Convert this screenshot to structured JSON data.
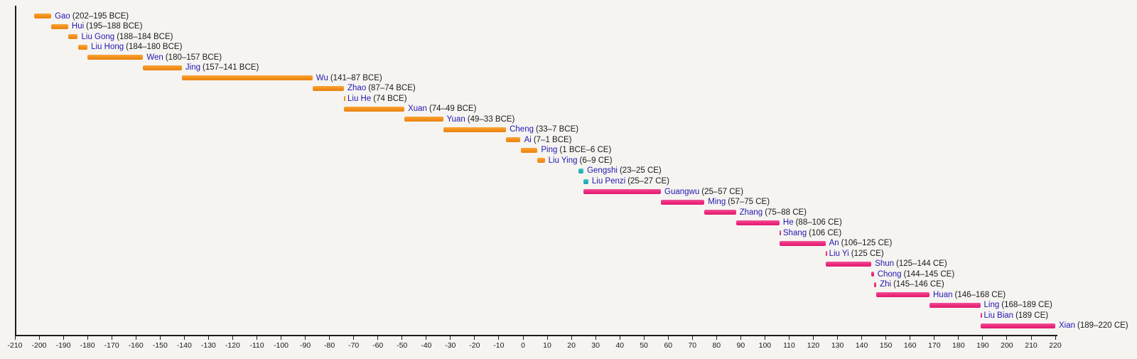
{
  "page": {
    "background": "#f5f4f1"
  },
  "style": {
    "name_color": "#2318b1",
    "date_color": "#1a1a1a",
    "axis_color": "#1c1c1c"
  },
  "chart_data": {
    "type": "bar",
    "variant": "horizontal-timeline-gantt",
    "title": "",
    "xlabel": "",
    "ylabel": "",
    "grid": false,
    "legend": false,
    "x_axis": {
      "min": -210,
      "max": 220,
      "tick_step": 10,
      "ticks": [
        "-210",
        "-200",
        "-190",
        "-180",
        "-170",
        "-160",
        "-150",
        "-140",
        "-130",
        "-120",
        "-110",
        "-100",
        "-90",
        "-80",
        "-70",
        "-60",
        "-50",
        "-40",
        "-30",
        "-20",
        "-10",
        "0",
        "10",
        "20",
        "30",
        "40",
        "50",
        "60",
        "70",
        "80",
        "90",
        "100",
        "110",
        "120",
        "130",
        "140",
        "150",
        "160",
        "170",
        "180",
        "190",
        "200",
        "210",
        "220"
      ]
    },
    "groups": {
      "western_han": {
        "color": "#f5921e",
        "top": "#f9a53a",
        "bottom": "#e8820f"
      },
      "interregnum": {
        "color": "#2bb6c0",
        "top": "#46c6ce",
        "bottom": "#1da3ad"
      },
      "eastern_han": {
        "color": "#ee2e80",
        "top": "#f2569c",
        "bottom": "#e01a6e"
      }
    },
    "emperors": [
      {
        "name": "Gao",
        "dates": "(202–195 BCE)",
        "start": -202,
        "end": -195,
        "group": "western_han"
      },
      {
        "name": "Hui",
        "dates": "(195–188 BCE)",
        "start": -195,
        "end": -188,
        "group": "western_han"
      },
      {
        "name": "Liu Gong",
        "dates": "(188–184 BCE)",
        "start": -188,
        "end": -184,
        "group": "western_han"
      },
      {
        "name": "Liu Hong",
        "dates": "(184–180 BCE)",
        "start": -184,
        "end": -180,
        "group": "western_han"
      },
      {
        "name": "Wen",
        "dates": "(180–157 BCE)",
        "start": -180,
        "end": -157,
        "group": "western_han"
      },
      {
        "name": "Jing",
        "dates": "(157–141 BCE)",
        "start": -157,
        "end": -141,
        "group": "western_han"
      },
      {
        "name": "Wu",
        "dates": "(141–87 BCE)",
        "start": -141,
        "end": -87,
        "group": "western_han"
      },
      {
        "name": "Zhao",
        "dates": "(87–74 BCE)",
        "start": -87,
        "end": -74,
        "group": "western_han"
      },
      {
        "name": "Liu He",
        "dates": "(74 BCE)",
        "start": -74,
        "end": -74,
        "group": "western_han"
      },
      {
        "name": "Xuan",
        "dates": "(74–49 BCE)",
        "start": -74,
        "end": -49,
        "group": "western_han"
      },
      {
        "name": "Yuan",
        "dates": "(49–33 BCE)",
        "start": -49,
        "end": -33,
        "group": "western_han"
      },
      {
        "name": "Cheng",
        "dates": "(33–7 BCE)",
        "start": -33,
        "end": -7,
        "group": "western_han"
      },
      {
        "name": "Ai",
        "dates": "(7–1 BCE)",
        "start": -7,
        "end": -1,
        "group": "western_han"
      },
      {
        "name": "Ping",
        "dates": "(1 BCE–6 CE)",
        "start": -1,
        "end": 6,
        "group": "western_han"
      },
      {
        "name": "Liu Ying",
        "dates": "(6–9 CE)",
        "start": 6,
        "end": 9,
        "group": "western_han"
      },
      {
        "name": "Gengshi",
        "dates": "(23–25 CE)",
        "start": 23,
        "end": 25,
        "group": "interregnum"
      },
      {
        "name": "Liu Penzi",
        "dates": "(25–27 CE)",
        "start": 25,
        "end": 27,
        "group": "interregnum"
      },
      {
        "name": "Guangwu",
        "dates": "(25–57 CE)",
        "start": 25,
        "end": 57,
        "group": "eastern_han"
      },
      {
        "name": "Ming",
        "dates": "(57–75 CE)",
        "start": 57,
        "end": 75,
        "group": "eastern_han"
      },
      {
        "name": "Zhang",
        "dates": "(75–88 CE)",
        "start": 75,
        "end": 88,
        "group": "eastern_han"
      },
      {
        "name": "He",
        "dates": "(88–106 CE)",
        "start": 88,
        "end": 106,
        "group": "eastern_han"
      },
      {
        "name": "Shang",
        "dates": "(106 CE)",
        "start": 106,
        "end": 106,
        "group": "eastern_han"
      },
      {
        "name": "An",
        "dates": "(106–125 CE)",
        "start": 106,
        "end": 125,
        "group": "eastern_han"
      },
      {
        "name": "Liu Yi",
        "dates": "(125 CE)",
        "start": 125,
        "end": 125,
        "group": "eastern_han"
      },
      {
        "name": "Shun",
        "dates": "(125–144 CE)",
        "start": 125,
        "end": 144,
        "group": "eastern_han"
      },
      {
        "name": "Chong",
        "dates": "(144–145 CE)",
        "start": 144,
        "end": 145,
        "group": "eastern_han"
      },
      {
        "name": "Zhi",
        "dates": "(145–146 CE)",
        "start": 145,
        "end": 146,
        "group": "eastern_han"
      },
      {
        "name": "Huan",
        "dates": "(146–168 CE)",
        "start": 146,
        "end": 168,
        "group": "eastern_han"
      },
      {
        "name": "Ling",
        "dates": "(168–189 CE)",
        "start": 168,
        "end": 189,
        "group": "eastern_han"
      },
      {
        "name": "Liu Bian",
        "dates": "(189 CE)",
        "start": 189,
        "end": 189,
        "group": "eastern_han"
      },
      {
        "name": "Xian",
        "dates": "(189–220 CE)",
        "start": 189,
        "end": 220,
        "group": "eastern_han"
      }
    ]
  }
}
